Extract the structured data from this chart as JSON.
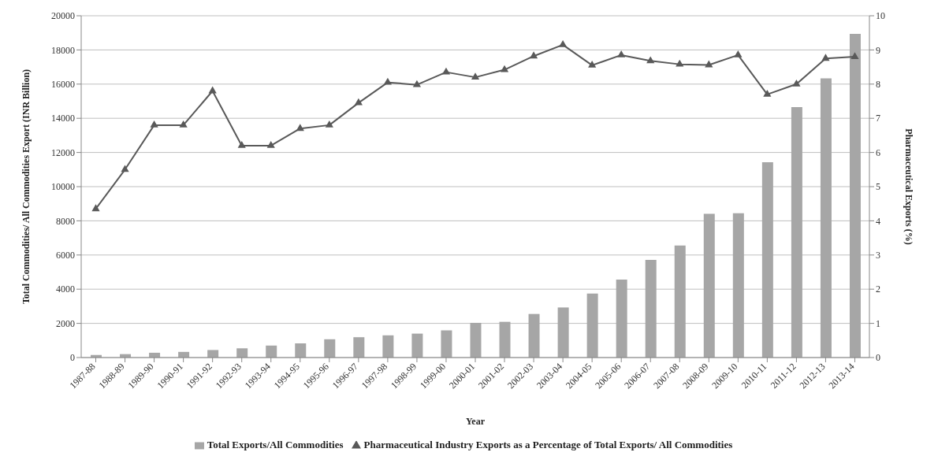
{
  "chart_data": {
    "type": "bar",
    "xlabel": "Year",
    "ylabel": "Total Commodities/ All Commodities Export (INR Billion)",
    "y2label": "Pharmaceutical Exports (%)",
    "categories": [
      "1987-88",
      "1988-89",
      "1989-90",
      "1990-91",
      "1991-92",
      "1992-93",
      "1993-94",
      "1994-95",
      "1995-96",
      "1996-97",
      "1997-98",
      "1998-99",
      "1999-00",
      "2000-01",
      "2001-02",
      "2002-03",
      "2003-04",
      "2004-05",
      "2005-06",
      "2006-07",
      "2007-08",
      "2008-09",
      "2009-10",
      "2010-11",
      "2011-12",
      "2012-13",
      "2013-14"
    ],
    "series": [
      {
        "name": "Total Exports/All Commodities",
        "color": "#a6a6a6",
        "values": [
          150,
          200,
          280,
          330,
          440,
          540,
          700,
          830,
          1070,
          1190,
          1300,
          1400,
          1590,
          2030,
          2090,
          2550,
          2930,
          3750,
          4560,
          5720,
          6560,
          8410,
          8450,
          11430,
          14660,
          16340,
          18940
        ]
      },
      {
        "name": "Pharmaceutical Industry Exports as a Percentage of Total Exports/ All Commodities",
        "type": "line",
        "axis": "y2",
        "color": "#595959",
        "marker": "triangle",
        "values": [
          4.35,
          5.5,
          6.8,
          6.8,
          7.8,
          6.2,
          6.2,
          6.7,
          6.8,
          7.45,
          8.05,
          7.98,
          8.35,
          8.2,
          8.42,
          8.82,
          9.15,
          8.55,
          8.85,
          8.68,
          8.58,
          8.56,
          8.85,
          7.7,
          8.0,
          8.75,
          8.8
        ]
      }
    ],
    "ylim": [
      0,
      20000
    ],
    "yticks": [
      0,
      2000,
      4000,
      6000,
      8000,
      10000,
      12000,
      14000,
      16000,
      18000,
      20000
    ],
    "y2lim": [
      0,
      10
    ],
    "y2ticks": [
      0,
      1,
      2,
      3,
      4,
      5,
      6,
      7,
      8,
      9,
      10
    ],
    "grid": "y",
    "legend": "bottom"
  }
}
